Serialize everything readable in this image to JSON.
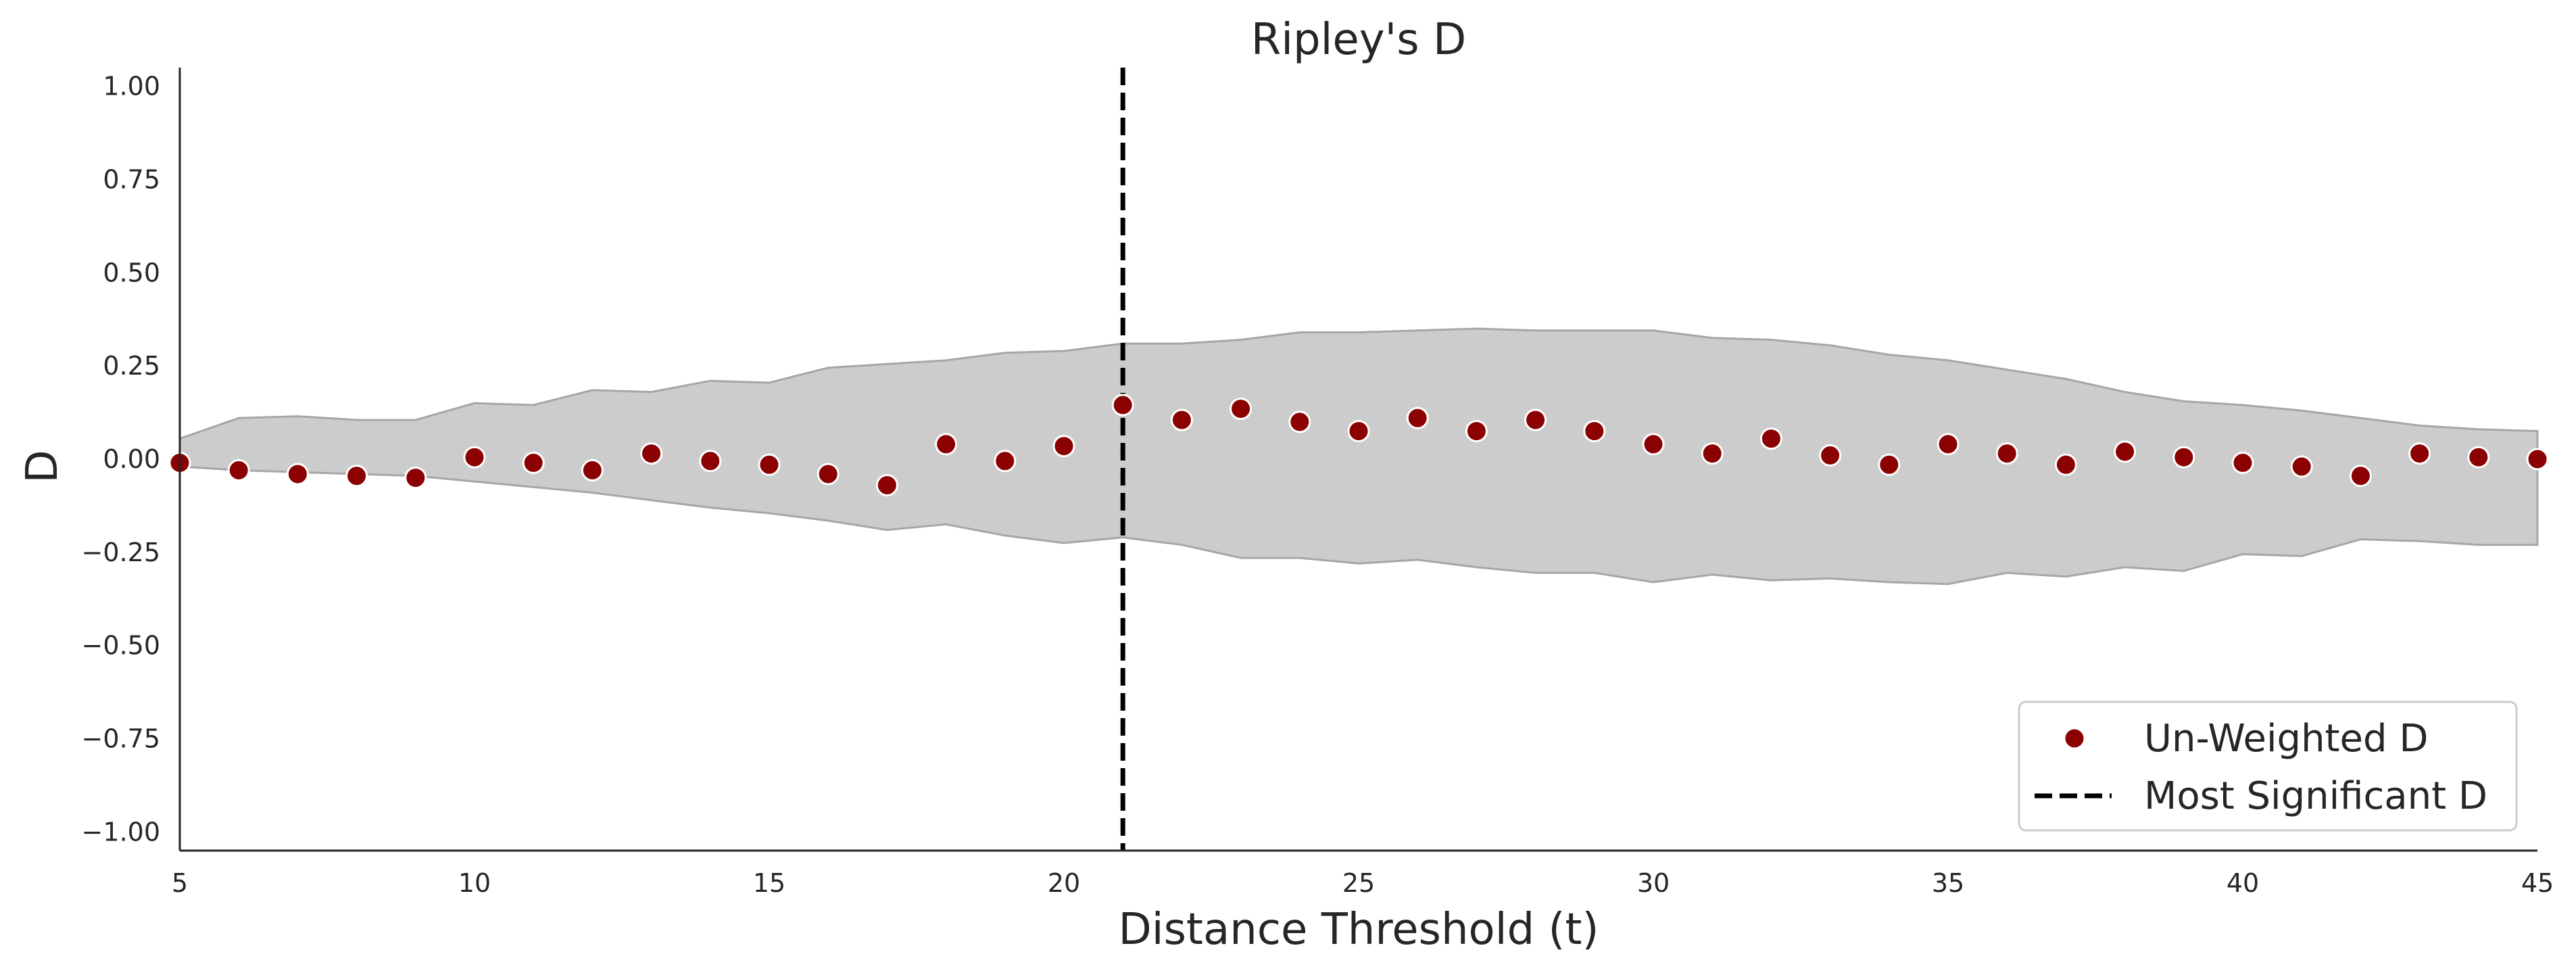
{
  "chart_data": {
    "type": "scatter",
    "title": "Ripley's D",
    "xlabel": "Distance Threshold (t)",
    "ylabel": "D",
    "xlim": [
      5,
      45
    ],
    "ylim": [
      -1.05,
      1.05
    ],
    "x_ticks": [
      5,
      10,
      15,
      20,
      25,
      30,
      35,
      40,
      45
    ],
    "x_tick_labels": [
      "5",
      "10",
      "15",
      "20",
      "25",
      "30",
      "35",
      "40",
      "45"
    ],
    "y_ticks": [
      1.0,
      0.75,
      0.5,
      0.25,
      0.0,
      -0.25,
      -0.5,
      -0.75,
      -1.0
    ],
    "y_tick_labels": [
      "1.00",
      "0.75",
      "0.50",
      "0.25",
      "0.00",
      "−0.25",
      "−0.50",
      "−0.75",
      "−1.00"
    ],
    "grid": false,
    "legend_position": "lower-right",
    "colors": {
      "points": "#8b0000",
      "point_edge": "#ffffff",
      "band_fill": "#cccccc",
      "band_edge": "#a6a6a6",
      "line": "#000000",
      "axis": "#262626"
    },
    "x": [
      5,
      6,
      7,
      8,
      9,
      10,
      11,
      12,
      13,
      14,
      15,
      16,
      17,
      18,
      19,
      20,
      21,
      22,
      23,
      24,
      25,
      26,
      27,
      28,
      29,
      30,
      31,
      32,
      33,
      34,
      35,
      36,
      37,
      38,
      39,
      40,
      41,
      42,
      43,
      44,
      45
    ],
    "series": [
      {
        "name": "Un-Weighted D",
        "type": "scatter",
        "values": [
          -0.01,
          -0.03,
          -0.04,
          -0.045,
          -0.05,
          0.005,
          -0.01,
          -0.03,
          0.015,
          -0.005,
          -0.015,
          -0.04,
          -0.07,
          0.04,
          -0.005,
          0.035,
          0.145,
          0.105,
          0.135,
          0.1,
          0.075,
          0.11,
          0.075,
          0.105,
          0.075,
          0.04,
          0.015,
          0.055,
          0.01,
          -0.015,
          0.04,
          0.015,
          -0.015,
          0.02,
          0.005,
          -0.01,
          -0.02,
          -0.045,
          0.015,
          0.005,
          0.0
        ]
      }
    ],
    "envelope": {
      "upper": [
        0.055,
        0.11,
        0.115,
        0.105,
        0.105,
        0.15,
        0.145,
        0.185,
        0.18,
        0.21,
        0.205,
        0.245,
        0.255,
        0.265,
        0.285,
        0.29,
        0.31,
        0.31,
        0.32,
        0.34,
        0.34,
        0.345,
        0.35,
        0.345,
        0.345,
        0.345,
        0.325,
        0.32,
        0.305,
        0.28,
        0.265,
        0.24,
        0.215,
        0.18,
        0.155,
        0.145,
        0.13,
        0.11,
        0.09,
        0.08,
        0.075
      ],
      "lower": [
        -0.02,
        -0.03,
        -0.035,
        -0.04,
        -0.045,
        -0.06,
        -0.075,
        -0.09,
        -0.11,
        -0.13,
        -0.145,
        -0.165,
        -0.19,
        -0.175,
        -0.205,
        -0.225,
        -0.21,
        -0.23,
        -0.265,
        -0.265,
        -0.28,
        -0.27,
        -0.29,
        -0.305,
        -0.305,
        -0.33,
        -0.31,
        -0.325,
        -0.32,
        -0.33,
        -0.335,
        -0.305,
        -0.315,
        -0.29,
        -0.3,
        -0.255,
        -0.26,
        -0.215,
        -0.22,
        -0.23,
        -0.23
      ]
    },
    "vline": {
      "name": "Most Significant D",
      "x": 21,
      "style": "dashed"
    }
  }
}
